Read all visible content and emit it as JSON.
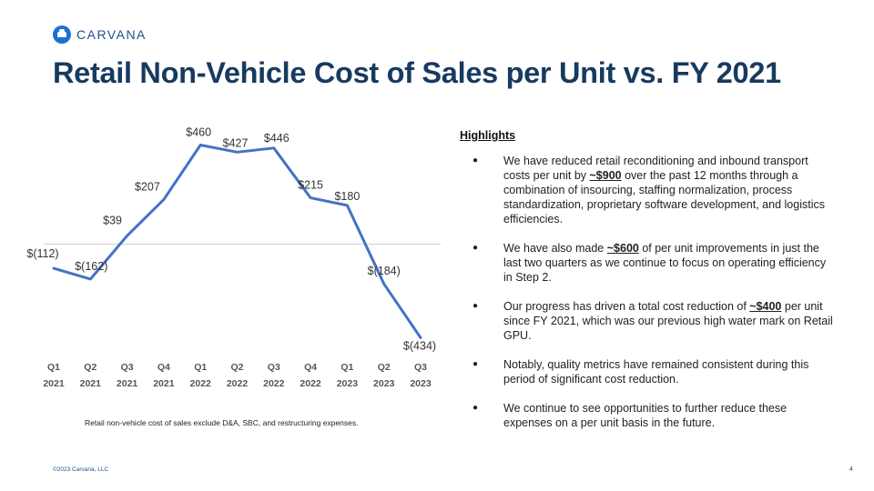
{
  "brand": {
    "name": "CARVANA"
  },
  "slide": {
    "title": "Retail Non-Vehicle Cost of Sales per Unit vs. FY 2021",
    "footnote": "Retail non-vehicle cost of sales exclude D&A, SBC, and restructuring expenses.",
    "copyright": "©2023 Carvana, LLC",
    "page_number": "4"
  },
  "highlights": {
    "title": "Highlights",
    "items": [
      {
        "before": "We have reduced retail reconditioning and inbound transport costs per unit by ",
        "bold": "~$900",
        "after": " over the past 12 months through a combination of insourcing, staffing normalization, process standardization, proprietary software development, and logistics efficiencies."
      },
      {
        "before": "We have also made ",
        "bold": "~$600",
        "after": " of per unit improvements in just the last two quarters as we continue to focus on operating efficiency in Step 2."
      },
      {
        "before": "Our progress has driven a total cost reduction of ",
        "bold": "~$400",
        "after": " per unit since FY 2021, which was our previous high water mark on Retail GPU."
      },
      {
        "before": "Notably, quality metrics have remained consistent during this period of significant cost reduction.",
        "bold": "",
        "after": ""
      },
      {
        "before": "We continue to see opportunities to further reduce these expenses on a per unit basis in the future.",
        "bold": "",
        "after": ""
      }
    ]
  },
  "chart_data": {
    "type": "line",
    "title": "",
    "xlabel": "",
    "ylabel": "",
    "categories": [
      "Q1 2021",
      "Q2 2021",
      "Q3 2021",
      "Q4 2021",
      "Q1 2022",
      "Q2 2022",
      "Q3 2022",
      "Q4 2022",
      "Q1 2023",
      "Q2 2023",
      "Q3 2023"
    ],
    "category_lines": [
      [
        "Q1",
        "2021"
      ],
      [
        "Q2",
        "2021"
      ],
      [
        "Q3",
        "2021"
      ],
      [
        "Q4",
        "2021"
      ],
      [
        "Q1",
        "2022"
      ],
      [
        "Q2",
        "2022"
      ],
      [
        "Q3",
        "2022"
      ],
      [
        "Q4",
        "2022"
      ],
      [
        "Q1",
        "2023"
      ],
      [
        "Q2",
        "2023"
      ],
      [
        "Q3",
        "2023"
      ]
    ],
    "values": [
      -112,
      -162,
      39,
      207,
      460,
      427,
      446,
      215,
      180,
      -184,
      -434
    ],
    "labels": [
      "$(112)",
      "$(162)",
      "$39",
      "$207",
      "$460",
      "$427",
      "$446",
      "$215",
      "$180",
      "$(184)",
      "$(434)"
    ],
    "ylim": [
      -470,
      500
    ],
    "zero_line": true,
    "line_color": "#4472c4",
    "grid": false,
    "legend": "none"
  }
}
